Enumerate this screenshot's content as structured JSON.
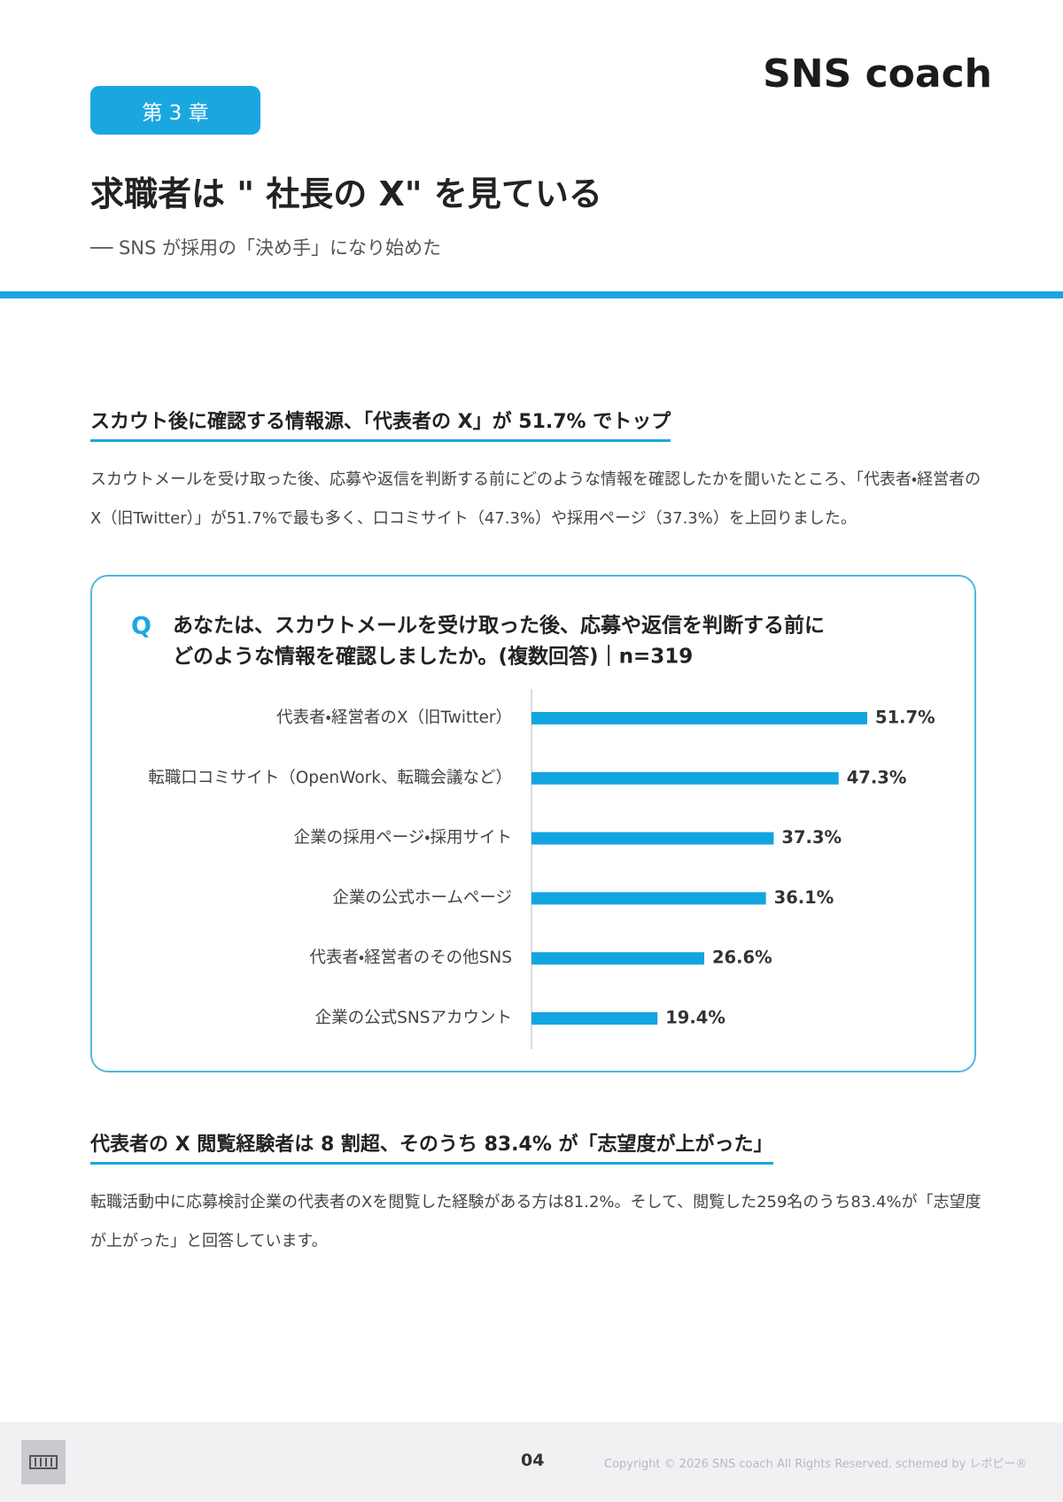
{
  "header": {
    "logo": "SNS coach",
    "chapter": "第 3 章",
    "title": "求職者は \" 社長の X\" を見ている",
    "subtitle": "── SNS が採用の「決め手」になり始めた"
  },
  "sections": [
    {
      "heading": "スカウト後に確認する情報源、「代表者の X」が 51.7% でトップ",
      "body": "スカウトメールを受け取った後、応募や返信を判断する前にどのような情報を確認したかを聞いたところ、「代表者・経営者のX（旧Twitter）」が51.7%で最も多く、口コミサイト（47.3%）や採用ページ（37.3%）を上回りました。"
    },
    {
      "heading": "代表者の X 閲覧経験者は 8 割超、そのうち 83.4% が「志望度が上がった」",
      "body": "転職活動中に応募検討企業の代表者のXを閲覧した経験がある方は81.2%。そして、閲覧した259名のうち83.4%が「志望度が上がった」と回答しています。"
    }
  ],
  "chart_data": {
    "type": "bar",
    "orientation": "horizontal",
    "question_mark": "Q",
    "question_lines": [
      "あなたは、スカウトメールを受け取った後、応募や返信を判断する前に",
      "どのような情報を確認しましたか。(複数回答)｜n=319"
    ],
    "categories": [
      "代表者・経営者のX（旧Twitter）",
      "転職口コミサイト（OpenWork、転職会議など）",
      "企業の採用ページ・採用サイト",
      "企業の公式ホームページ",
      "代表者・経営者のその他SNS",
      "企業の公式SNSアカウント"
    ],
    "values": [
      51.7,
      47.3,
      37.3,
      36.1,
      26.6,
      19.4
    ],
    "value_labels": [
      "51.7%",
      "47.3%",
      "37.3%",
      "36.1%",
      "26.6%",
      "19.4%"
    ],
    "color": "#12a5e0"
  },
  "footer": {
    "page": "04",
    "copyright": "Copyright © 2026 SNS coach All Rights Reserved. schemed by レポピー®"
  }
}
